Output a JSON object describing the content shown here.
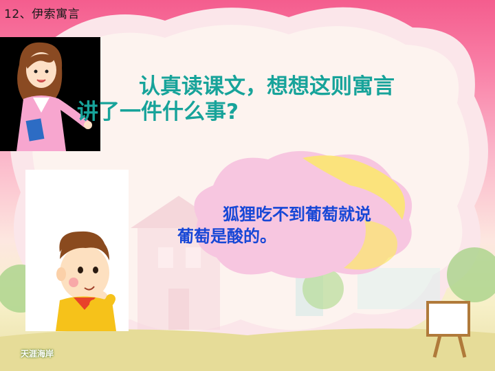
{
  "lesson_title": "12、伊索寓言",
  "question": {
    "line1": "认真读课文，想想这则寓言",
    "line2": "讲了一件什么事?"
  },
  "answer": {
    "line1": "狐狸吃不到葡萄就说",
    "line2": "葡萄是酸的。"
  },
  "logo_text": "天涯海岸",
  "colors": {
    "question_text": "#17a39a",
    "answer_text": "#1747d6",
    "background_top": "#f45d8e"
  }
}
